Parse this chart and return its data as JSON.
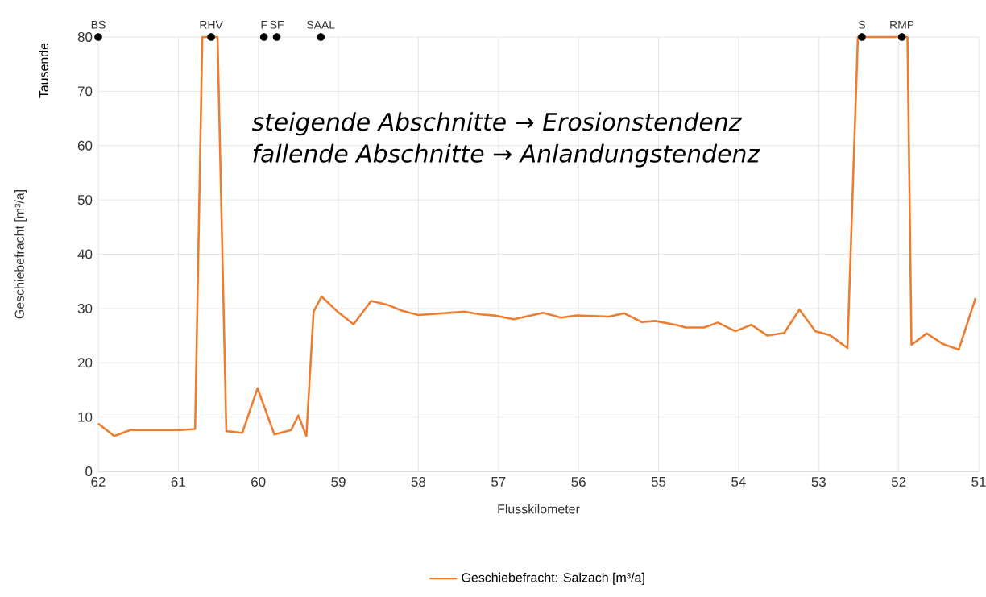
{
  "chart_data": {
    "type": "line",
    "xlabel": "Flusskilometer",
    "ylabel": "Geschiebefracht [m³/a]",
    "xlim": [
      62,
      51
    ],
    "ylim": [
      0,
      80
    ],
    "xticks": [
      62,
      61,
      60,
      59,
      58,
      57,
      56,
      55,
      54,
      53,
      52,
      51
    ],
    "yticks": [
      0,
      10,
      20,
      30,
      40,
      50,
      60,
      70,
      80
    ],
    "grid": true,
    "legend": "bottom",
    "series": [
      {
        "name": "Geschiebefracht: Salzach [m³/a]",
        "color": "#ed7d31",
        "x": [
          62.0,
          61.8,
          61.6,
          60.98,
          60.79,
          60.7,
          60.51,
          60.4,
          60.2,
          60.01,
          59.8,
          59.59,
          59.5,
          59.4,
          59.31,
          59.21,
          59.01,
          58.81,
          58.59,
          58.39,
          58.21,
          58.0,
          57.42,
          57.22,
          57.05,
          56.81,
          56.44,
          56.22,
          56.02,
          55.62,
          55.43,
          55.21,
          55.04,
          54.76,
          54.66,
          54.43,
          54.26,
          54.04,
          53.84,
          53.64,
          53.43,
          53.24,
          53.04,
          52.86,
          52.64,
          52.51,
          51.89,
          51.84,
          51.65,
          51.44,
          51.25,
          51.04
        ],
        "values": [
          8.8,
          6.5,
          7.6,
          7.6,
          7.8,
          80,
          80,
          7.4,
          7.1,
          15.3,
          6.8,
          7.6,
          10.3,
          6.5,
          29.4,
          32.2,
          29.4,
          27.1,
          31.4,
          30.7,
          29.6,
          28.8,
          29.4,
          28.9,
          28.7,
          28.0,
          29.2,
          28.3,
          28.7,
          28.5,
          29.1,
          27.5,
          27.7,
          26.9,
          26.5,
          26.5,
          27.4,
          25.8,
          27.0,
          25.0,
          25.5,
          29.8,
          25.8,
          25.1,
          22.7,
          80,
          80,
          23.3,
          25.4,
          23.4,
          22.4,
          31.9
        ]
      },
      {
        "type": "scatter",
        "color": "#000000",
        "marker": "circle",
        "x": [
          62.0,
          60.59,
          59.93,
          59.77,
          59.22,
          52.46,
          51.96
        ],
        "values": [
          80,
          80,
          80,
          80,
          80,
          80,
          80
        ]
      }
    ],
    "annotations": [
      "Tausende",
      "steigende Abschnitte → Erosionstendenz",
      "fallende Abschnitte    → Anlandungstendenz",
      {
        "text": "BS",
        "x": 62.0,
        "y": 80
      },
      {
        "text": "RHV",
        "x": 60.59,
        "y": 80
      },
      {
        "text": "F",
        "x": 59.93,
        "y": 80
      },
      {
        "text": "SF",
        "x": 59.77,
        "y": 80
      },
      {
        "text": "SAAL",
        "x": 59.22,
        "y": 80
      },
      {
        "text": "S",
        "x": 52.46,
        "y": 80
      },
      {
        "text": "RMP",
        "x": 51.96,
        "y": 80
      }
    ]
  }
}
